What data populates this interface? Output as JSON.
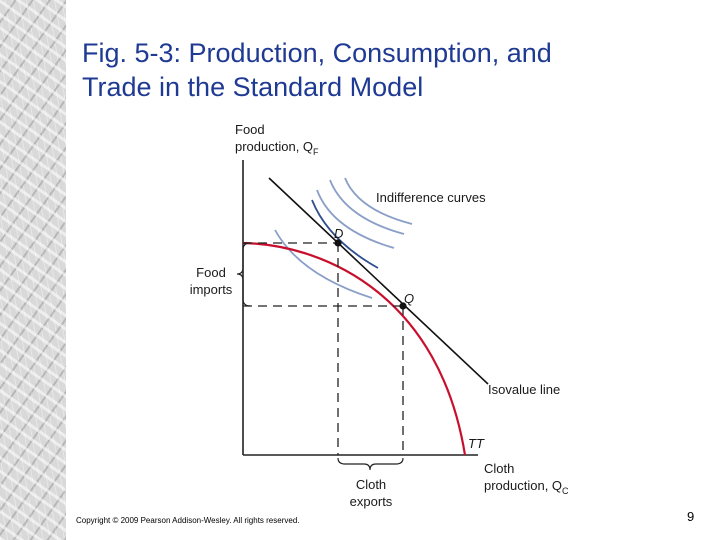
{
  "slide": {
    "title_line1": "Fig. 5-3: Production, Consumption, and",
    "title_line2": "Trade in the Standard Model",
    "copyright": "Copyright © 2009 Pearson Addison-Wesley. All rights reserved.",
    "page_number": "9"
  },
  "diagram": {
    "y_axis_label_line1": "Food",
    "y_axis_label_line2": "production, Q",
    "y_axis_subscript": "F",
    "x_axis_label_line1": "Cloth",
    "x_axis_label_line2": "production, Q",
    "x_axis_subscript": "C",
    "indifference_label": "Indifference curves",
    "point_d": "D",
    "point_q": "Q",
    "food_imports_line1": "Food",
    "food_imports_line2": "imports",
    "isovalue_label": "Isovalue line",
    "tt_label": "TT",
    "cloth_exports_line1": "Cloth",
    "cloth_exports_line2": "exports"
  },
  "colors": {
    "title": "#1f3a93",
    "ppf_curve": "#c8102e",
    "indifference_curves": "#8a9fc8",
    "tangent_indifference_curve": "#2f4f8f",
    "isovalue_line": "#111111"
  }
}
